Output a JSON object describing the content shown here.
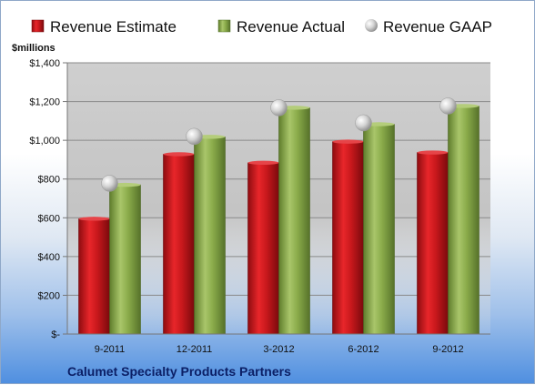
{
  "chart_data": {
    "type": "bar",
    "unit_label": "$millions",
    "company": "Calumet Specialty Products Partners",
    "categories": [
      "9-2011",
      "12-2011",
      "3-2012",
      "6-2012",
      "9-2012"
    ],
    "series": [
      {
        "name": "Revenue Estimate",
        "kind": "bar",
        "color": "#c8181c",
        "values": [
          595,
          928,
          884,
          993,
          937
        ]
      },
      {
        "name": "Revenue Actual",
        "kind": "bar",
        "color": "#8aab4a",
        "values": [
          770,
          1018,
          1168,
          1083,
          1177
        ]
      },
      {
        "name": "Revenue GAAP",
        "kind": "marker",
        "color": "#c9c9c9",
        "values": [
          778,
          1020,
          1168,
          1090,
          1177
        ]
      }
    ],
    "ylim": [
      0,
      1400
    ],
    "yticks": [
      0,
      200,
      400,
      600,
      800,
      1000,
      1200,
      1400
    ],
    "ytick_labels": [
      "$-",
      "$200",
      "$400",
      "$600",
      "$800",
      "$1,000",
      "$1,200",
      "$1,400"
    ],
    "grid": true,
    "legend_position": "top"
  }
}
